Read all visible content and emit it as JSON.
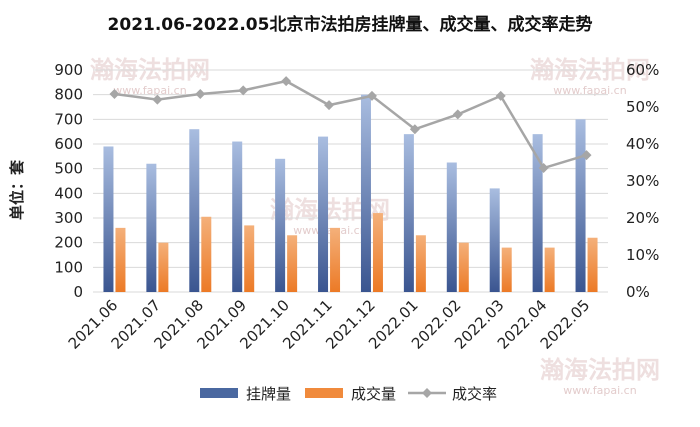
{
  "chart_data": {
    "type": "bar",
    "title": "2021.06-2022.05北京市法拍房挂牌量、成交量、成交率走势",
    "ylabel": "单位：套",
    "xlabel": "",
    "categories": [
      "2021.06",
      "2021.07",
      "2021.08",
      "2021.09",
      "2021.10",
      "2021.11",
      "2021.12",
      "2022.01",
      "2022.02",
      "2022.03",
      "2022.04",
      "2022.05"
    ],
    "series": [
      {
        "name": "挂牌量",
        "type": "bar",
        "axis": "left",
        "color": "#4a68a0",
        "values": [
          590,
          520,
          660,
          610,
          540,
          630,
          800,
          640,
          525,
          420,
          640,
          700
        ]
      },
      {
        "name": "成交量",
        "type": "bar",
        "axis": "left",
        "color": "#f08a3c",
        "values": [
          260,
          200,
          305,
          270,
          230,
          260,
          320,
          230,
          200,
          180,
          180,
          220
        ]
      },
      {
        "name": "成交率",
        "type": "line",
        "axis": "right",
        "color": "#a6a6a6",
        "values": [
          53.5,
          52,
          53.5,
          54.5,
          57,
          50.5,
          53,
          44,
          48,
          53,
          33.5,
          37
        ]
      }
    ],
    "ylim": [
      0,
      900
    ],
    "yticks": [
      0,
      100,
      200,
      300,
      400,
      500,
      600,
      700,
      800,
      900
    ],
    "y2lim": [
      0,
      60
    ],
    "y2ticks": [
      "0%",
      "10%",
      "20%",
      "30%",
      "40%",
      "50%",
      "60%"
    ],
    "grid": true,
    "legend": "bottom"
  },
  "watermark": {
    "name": "瀚海法拍网",
    "url": "www.fapai.cn"
  }
}
